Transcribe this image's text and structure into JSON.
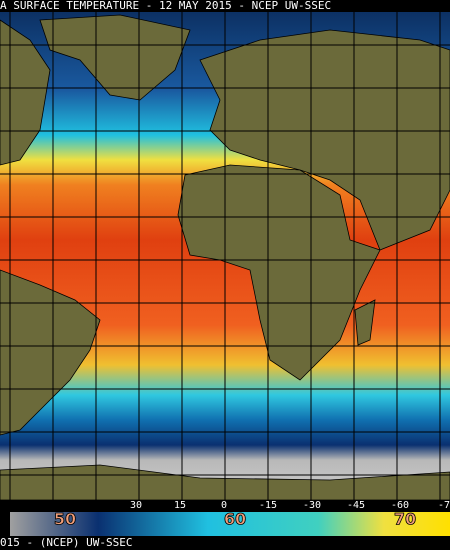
{
  "header": {
    "title": "A SURFACE TEMPERATURE - 12 MAY 2015 - NCEP UW-SSEC"
  },
  "longitude_labels": [
    "30",
    "15",
    "0",
    "-15",
    "-30",
    "-45",
    "-60",
    "-7"
  ],
  "legend": {
    "labels": [
      "50",
      "60",
      "70"
    ]
  },
  "footer": {
    "credit": "015 - (NCEP)   UW-SSEC"
  }
}
